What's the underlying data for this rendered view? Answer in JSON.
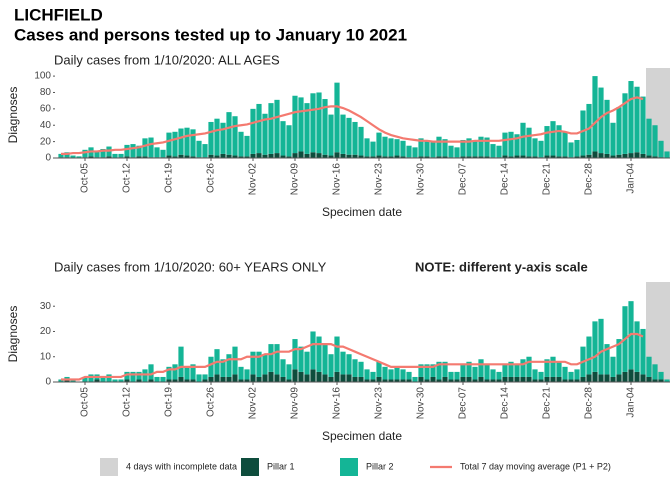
{
  "header": {
    "title": "LICHFIELD",
    "subtitle": "Cases and persons tested up to January 10 2021"
  },
  "chart_data": [
    {
      "type": "bar",
      "stacked": true,
      "title": "Daily cases from 1/10/2020: ALL AGES",
      "ylabel": "Diagnoses",
      "xlabel": "Specimen date",
      "categories": [
        null,
        null,
        null,
        null,
        "Oct-05",
        null,
        null,
        null,
        null,
        null,
        null,
        "Oct-12",
        null,
        null,
        null,
        null,
        null,
        null,
        "Oct-19",
        null,
        null,
        null,
        null,
        null,
        null,
        "Oct-26",
        null,
        null,
        null,
        null,
        null,
        null,
        "Nov-02",
        null,
        null,
        null,
        null,
        null,
        null,
        "Nov-09",
        null,
        null,
        null,
        null,
        null,
        null,
        "Nov-16",
        null,
        null,
        null,
        null,
        null,
        null,
        "Nov-23",
        null,
        null,
        null,
        null,
        null,
        null,
        "Nov-30",
        null,
        null,
        null,
        null,
        null,
        null,
        "Dec-07",
        null,
        null,
        null,
        null,
        null,
        null,
        "Dec-14",
        null,
        null,
        null,
        null,
        null,
        null,
        "Dec-21",
        null,
        null,
        null,
        null,
        null,
        null,
        "Dec-28",
        null,
        null,
        null,
        null,
        null,
        null,
        "Jan-04",
        null,
        null,
        null,
        null,
        null,
        null
      ],
      "ylim": [
        0,
        105
      ],
      "yticks": [
        0,
        20,
        40,
        60,
        80,
        100
      ],
      "incomplete": {
        "label": "4 days with incomplete data",
        "days": 4,
        "color": "#d3d3d3"
      },
      "series": [
        {
          "name": "Pillar 1",
          "color": "#0e4d3d",
          "values": [
            1,
            1,
            0,
            0,
            1,
            2,
            1,
            1,
            2,
            0,
            1,
            2,
            1,
            2,
            2,
            1,
            1,
            1,
            3,
            2,
            4,
            3,
            2,
            1,
            1,
            4,
            3,
            5,
            4,
            3,
            2,
            2,
            5,
            6,
            4,
            5,
            6,
            3,
            2,
            6,
            8,
            5,
            7,
            6,
            4,
            3,
            7,
            5,
            4,
            4,
            3,
            2,
            2,
            3,
            2,
            2,
            3,
            2,
            1,
            1,
            2,
            2,
            1,
            2,
            2,
            1,
            1,
            2,
            2,
            2,
            2,
            2,
            1,
            1,
            3,
            2,
            3,
            3,
            2,
            2,
            1,
            3,
            3,
            2,
            2,
            1,
            2,
            3,
            4,
            8,
            6,
            5,
            3,
            4,
            5,
            6,
            7,
            5,
            3,
            2,
            1,
            0
          ]
        },
        {
          "name": "Pillar 2",
          "color": "#14b596",
          "values": [
            4,
            6,
            3,
            2,
            9,
            11,
            8,
            10,
            12,
            5,
            4,
            14,
            16,
            13,
            22,
            24,
            12,
            9,
            28,
            30,
            32,
            34,
            33,
            20,
            16,
            40,
            45,
            38,
            52,
            48,
            30,
            25,
            55,
            60,
            50,
            62,
            65,
            42,
            38,
            70,
            66,
            62,
            72,
            74,
            68,
            50,
            85,
            48,
            45,
            40,
            35,
            22,
            18,
            28,
            24,
            22,
            20,
            19,
            14,
            12,
            22,
            20,
            18,
            24,
            21,
            14,
            12,
            20,
            22,
            19,
            24,
            23,
            16,
            14,
            28,
            30,
            26,
            40,
            35,
            22,
            20,
            36,
            42,
            38,
            30,
            18,
            20,
            55,
            62,
            92,
            80,
            66,
            40,
            58,
            74,
            88,
            80,
            70,
            45,
            38,
            20,
            8
          ]
        },
        {
          "name": "Total 7 day moving average (P1 + P2)",
          "type": "line",
          "color": "#f47a70",
          "values": [
            5,
            5,
            6,
            6,
            7,
            8,
            8,
            9,
            9,
            10,
            10,
            11,
            12,
            13,
            15,
            17,
            18,
            19,
            21,
            23,
            25,
            27,
            28,
            29,
            30,
            32,
            34,
            35,
            37,
            39,
            40,
            41,
            43,
            45,
            47,
            48,
            50,
            52,
            54,
            56,
            57,
            58,
            59,
            60,
            62,
            63,
            63,
            61,
            58,
            54,
            50,
            45,
            40,
            35,
            31,
            28,
            26,
            24,
            23,
            22,
            21,
            21,
            20,
            20,
            20,
            20,
            20,
            20,
            20,
            21,
            21,
            21,
            21,
            21,
            22,
            23,
            24,
            26,
            27,
            28,
            29,
            31,
            32,
            33,
            32,
            30,
            30,
            33,
            36,
            43,
            50,
            55,
            58,
            62,
            67,
            72,
            74,
            72,
            null,
            null,
            null,
            null
          ]
        }
      ]
    },
    {
      "type": "bar",
      "stacked": true,
      "title": "Daily cases from 1/10/2020: 60+ YEARS ONLY",
      "note": "NOTE: different y-axis scale",
      "ylabel": "Diagnoses",
      "xlabel": "Specimen date",
      "categories": [
        null,
        null,
        null,
        null,
        "Oct-05",
        null,
        null,
        null,
        null,
        null,
        null,
        "Oct-12",
        null,
        null,
        null,
        null,
        null,
        null,
        "Oct-19",
        null,
        null,
        null,
        null,
        null,
        null,
        "Oct-26",
        null,
        null,
        null,
        null,
        null,
        null,
        "Nov-02",
        null,
        null,
        null,
        null,
        null,
        null,
        "Nov-09",
        null,
        null,
        null,
        null,
        null,
        null,
        "Nov-16",
        null,
        null,
        null,
        null,
        null,
        null,
        "Nov-23",
        null,
        null,
        null,
        null,
        null,
        null,
        "Nov-30",
        null,
        null,
        null,
        null,
        null,
        null,
        "Dec-07",
        null,
        null,
        null,
        null,
        null,
        null,
        "Dec-14",
        null,
        null,
        null,
        null,
        null,
        null,
        "Dec-21",
        null,
        null,
        null,
        null,
        null,
        null,
        "Dec-28",
        null,
        null,
        null,
        null,
        null,
        null,
        "Jan-04",
        null,
        null,
        null,
        null,
        null,
        null
      ],
      "ylim": [
        0,
        38
      ],
      "yticks": [
        0,
        10,
        20,
        30
      ],
      "incomplete": {
        "label": "4 days with incomplete data",
        "days": 4,
        "color": "#d3d3d3"
      },
      "series": [
        {
          "name": "Pillar 1",
          "color": "#0e4d3d",
          "values": [
            0,
            1,
            0,
            0,
            0,
            0,
            1,
            0,
            0,
            0,
            0,
            1,
            0,
            1,
            0,
            1,
            0,
            0,
            1,
            1,
            2,
            1,
            1,
            0,
            1,
            2,
            3,
            2,
            2,
            3,
            1,
            1,
            3,
            2,
            3,
            4,
            3,
            2,
            1,
            5,
            4,
            3,
            5,
            4,
            3,
            2,
            4,
            3,
            3,
            2,
            2,
            1,
            1,
            2,
            1,
            1,
            1,
            1,
            1,
            0,
            2,
            1,
            2,
            1,
            2,
            1,
            1,
            2,
            2,
            1,
            2,
            1,
            1,
            1,
            2,
            2,
            2,
            2,
            2,
            1,
            1,
            2,
            2,
            2,
            1,
            1,
            1,
            2,
            3,
            4,
            3,
            3,
            2,
            3,
            4,
            5,
            4,
            3,
            2,
            1,
            1,
            0
          ]
        },
        {
          "name": "Pillar 2",
          "color": "#14b596",
          "values": [
            1,
            1,
            1,
            0,
            2,
            3,
            2,
            2,
            3,
            1,
            1,
            3,
            4,
            3,
            5,
            6,
            2,
            2,
            5,
            6,
            12,
            5,
            6,
            3,
            2,
            8,
            10,
            7,
            9,
            11,
            5,
            4,
            9,
            10,
            8,
            11,
            12,
            7,
            6,
            12,
            10,
            9,
            15,
            14,
            12,
            9,
            14,
            9,
            8,
            7,
            6,
            4,
            3,
            6,
            5,
            4,
            5,
            4,
            3,
            2,
            5,
            6,
            5,
            7,
            6,
            3,
            3,
            5,
            6,
            5,
            7,
            6,
            4,
            3,
            5,
            6,
            5,
            7,
            8,
            4,
            3,
            7,
            8,
            6,
            5,
            3,
            4,
            12,
            15,
            20,
            22,
            12,
            8,
            14,
            26,
            27,
            20,
            18,
            8,
            6,
            3,
            1
          ]
        },
        {
          "name": "Total 7 day moving average (P1 + P2)",
          "type": "line",
          "color": "#f47a70",
          "values": [
            1,
            1,
            1,
            1,
            2,
            2,
            2,
            2,
            2,
            2,
            2,
            3,
            3,
            3,
            3,
            3,
            4,
            4,
            5,
            5,
            6,
            6,
            6,
            6,
            6,
            7,
            8,
            8,
            9,
            9,
            9,
            10,
            10,
            10,
            11,
            11,
            12,
            12,
            12,
            13,
            13,
            14,
            15,
            15,
            15,
            15,
            14,
            14,
            13,
            12,
            11,
            10,
            9,
            8,
            7,
            6,
            6,
            6,
            6,
            6,
            6,
            6,
            6,
            7,
            7,
            7,
            7,
            7,
            7,
            7,
            7,
            7,
            7,
            7,
            7,
            7,
            7,
            7,
            8,
            8,
            8,
            8,
            8,
            8,
            8,
            7,
            7,
            8,
            9,
            10,
            12,
            13,
            14,
            15,
            17,
            19,
            19,
            18,
            null,
            null,
            null,
            null
          ]
        }
      ]
    }
  ]
}
